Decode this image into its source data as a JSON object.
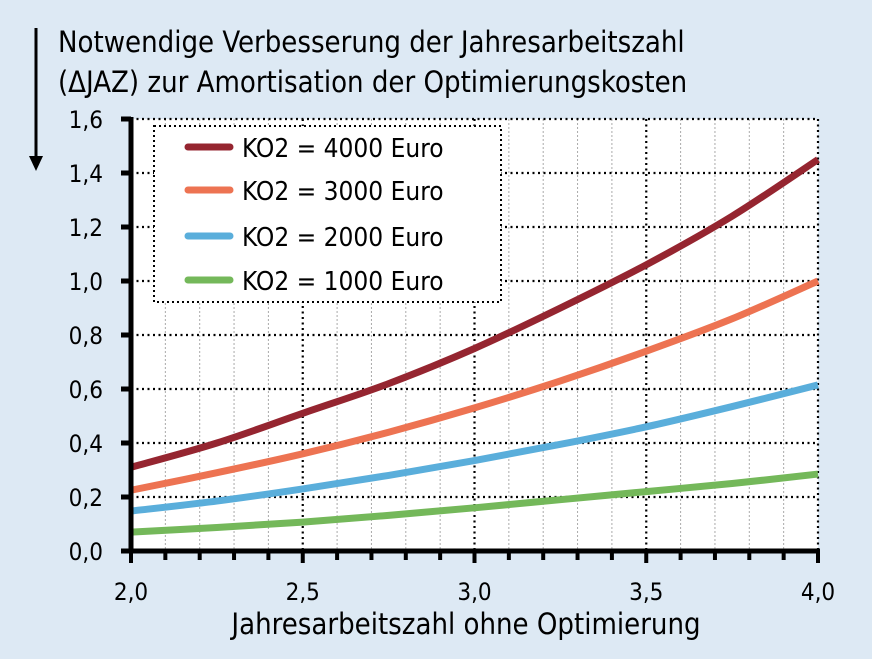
{
  "chart_data": {
    "type": "line",
    "title": "Notwendige Verbesserung der Jahresarbeitszahl (ΔJAZ) zur Amortisation der Optimierungskosten",
    "title_lines": [
      "Notwendige Verbesserung der Jahresarbeitszahl",
      "(ΔJAZ) zur Amortisation der Optimierungskosten"
    ],
    "xlabel": "Jahresarbeitszahl ohne Optimierung",
    "ylabel": "ΔJAZ",
    "xlim": [
      2.0,
      4.0
    ],
    "ylim": [
      0.0,
      1.6
    ],
    "x_ticks": [
      "2,0",
      "2,5",
      "3,0",
      "3,5",
      "4,0"
    ],
    "y_ticks": [
      "0,0",
      "0,2",
      "0,4",
      "0,6",
      "0,8",
      "1,0",
      "1,2",
      "1,4",
      "1,6"
    ],
    "grid": true,
    "legend_position": "upper-left",
    "x": [
      2.0,
      2.25,
      2.5,
      2.75,
      3.0,
      3.25,
      3.5,
      3.75,
      4.0
    ],
    "series": [
      {
        "name": "KO2  = 4000 Euro",
        "color": "#952530",
        "values": [
          0.31,
          0.4,
          0.51,
          0.62,
          0.75,
          0.9,
          1.06,
          1.24,
          1.45
        ]
      },
      {
        "name": "KO2  = 3000 Euro",
        "color": "#ED7352",
        "values": [
          0.225,
          0.29,
          0.36,
          0.44,
          0.53,
          0.63,
          0.74,
          0.86,
          1.0
        ]
      },
      {
        "name": "KO2  = 2000 Euro",
        "color": "#5AAEDB",
        "values": [
          0.148,
          0.185,
          0.23,
          0.28,
          0.335,
          0.395,
          0.46,
          0.535,
          0.615
        ]
      },
      {
        "name": "KO2  = 1000 Euro",
        "color": "#74B85A",
        "values": [
          0.07,
          0.087,
          0.107,
          0.132,
          0.16,
          0.19,
          0.22,
          0.25,
          0.285
        ]
      }
    ]
  },
  "colors": {
    "background": "#DDE9F4",
    "plot_background": "#FFFFFF",
    "axis": "#000000"
  }
}
